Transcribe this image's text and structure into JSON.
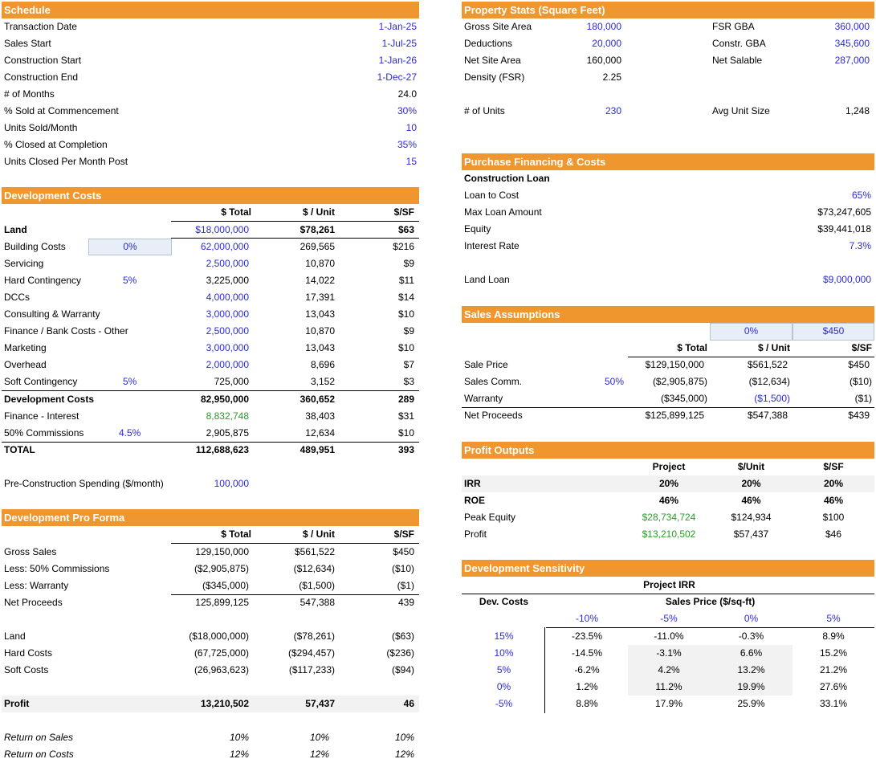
{
  "schedule": {
    "header": "Schedule",
    "rows": [
      {
        "label": "Transaction Date",
        "value": "1-Jan-25"
      },
      {
        "label": "Sales Start",
        "value": "1-Jul-25"
      },
      {
        "label": "Construction Start",
        "value": "1-Jan-26"
      },
      {
        "label": "Construction End",
        "value": "1-Dec-27"
      },
      {
        "label": "# of Months",
        "value": "24.0"
      },
      {
        "label": "% Sold at Commencement",
        "value": "30%"
      },
      {
        "label": "Units Sold/Month",
        "value": "10"
      },
      {
        "label": "% Closed at Completion",
        "value": "35%"
      },
      {
        "label": "Units Closed Per Month Post",
        "value": "15"
      }
    ]
  },
  "property": {
    "header": "Property Stats (Square Feet)",
    "left": [
      {
        "label": "Gross Site Area",
        "value": "180,000"
      },
      {
        "label": "Deductions",
        "value": "20,000"
      },
      {
        "label": "Net Site Area",
        "value": "160,000"
      },
      {
        "label": "Density (FSR)",
        "value": "2.25"
      }
    ],
    "right": [
      {
        "label": "FSR GBA",
        "value": "360,000"
      },
      {
        "label": "Constr. GBA",
        "value": "345,600"
      },
      {
        "label": "Net Salable",
        "value": "287,000"
      }
    ],
    "units_label": "# of Units",
    "units_value": "230",
    "avg_label": "Avg Unit Size",
    "avg_value": "1,248"
  },
  "devcosts": {
    "header": "Development Costs",
    "col_total": "$ Total",
    "col_unit": "$ / Unit",
    "col_sf": "$/SF",
    "rows": [
      {
        "label": "Land",
        "pct": "",
        "total": "$18,000,000",
        "unit": "$78,261",
        "sf": "$63"
      },
      {
        "label": "Building Costs",
        "pct": "0%",
        "total": "62,000,000",
        "unit": "269,565",
        "sf": "$216"
      },
      {
        "label": "Servicing",
        "pct": "",
        "total": "2,500,000",
        "unit": "10,870",
        "sf": "$9"
      },
      {
        "label": "Hard Contingency",
        "pct": "5%",
        "total": "3,225,000",
        "unit": "14,022",
        "sf": "$11"
      },
      {
        "label": "DCCs",
        "pct": "",
        "total": "4,000,000",
        "unit": "17,391",
        "sf": "$14"
      },
      {
        "label": "Consulting & Warranty",
        "pct": "",
        "total": "3,000,000",
        "unit": "13,043",
        "sf": "$10"
      },
      {
        "label": "Finance / Bank Costs - Other",
        "pct": "",
        "total": "2,500,000",
        "unit": "10,870",
        "sf": "$9"
      },
      {
        "label": "Marketing",
        "pct": "",
        "total": "3,000,000",
        "unit": "13,043",
        "sf": "$10"
      },
      {
        "label": "Overhead",
        "pct": "",
        "total": "2,000,000",
        "unit": "8,696",
        "sf": "$7"
      },
      {
        "label": "Soft Contingency",
        "pct": "5%",
        "total": "725,000",
        "unit": "3,152",
        "sf": "$3"
      },
      {
        "label": "Development Costs",
        "pct": "",
        "total": "82,950,000",
        "unit": "360,652",
        "sf": "289"
      },
      {
        "label": "Finance - Interest",
        "pct": "",
        "total": "8,832,748",
        "unit": "38,403",
        "sf": "$31"
      },
      {
        "label": "50% Commissions",
        "pct": "4.5%",
        "total": "2,905,875",
        "unit": "12,634",
        "sf": "$10"
      },
      {
        "label": "TOTAL",
        "pct": "",
        "total": "112,688,623",
        "unit": "489,951",
        "sf": "393"
      }
    ],
    "preconst_label": "Pre-Construction Spending ($/month)",
    "preconst_value": "100,000"
  },
  "proforma": {
    "header": "Development Pro Forma",
    "col_total": "$ Total",
    "col_unit": "$ / Unit",
    "col_sf": "$/SF",
    "rows": [
      {
        "label": "Gross Sales",
        "total": "129,150,000",
        "unit": "$561,522",
        "sf": "$450"
      },
      {
        "label": "Less: 50% Commissions",
        "total": "($2,905,875)",
        "unit": "($12,634)",
        "sf": "($10)"
      },
      {
        "label": "Less: Warranty",
        "total": "($345,000)",
        "unit": "($1,500)",
        "sf": "($1)"
      },
      {
        "label": "Net Proceeds",
        "total": "125,899,125",
        "unit": "547,388",
        "sf": "439"
      },
      {
        "label": "Land",
        "total": "($18,000,000)",
        "unit": "($78,261)",
        "sf": "($63)"
      },
      {
        "label": "Hard Costs",
        "total": "(67,725,000)",
        "unit": "($294,457)",
        "sf": "($236)"
      },
      {
        "label": "Soft Costs",
        "total": "(26,963,623)",
        "unit": "($117,233)",
        "sf": "($94)"
      },
      {
        "label": "Profit",
        "total": "13,210,502",
        "unit": "57,437",
        "sf": "46"
      },
      {
        "label": "Return on Sales",
        "total": "10%",
        "unit": "10%",
        "sf": "10%"
      },
      {
        "label": "Return on Costs",
        "total": "12%",
        "unit": "12%",
        "sf": "12%"
      }
    ]
  },
  "financing": {
    "header": "Purchase Financing & Costs",
    "sub": "Construction Loan",
    "rows": [
      {
        "label": "Loan to Cost",
        "value": "65%"
      },
      {
        "label": "Max Loan Amount",
        "value": "$73,247,605"
      },
      {
        "label": "Equity",
        "value": "$39,441,018"
      },
      {
        "label": "Interest Rate",
        "value": "7.3%"
      }
    ],
    "land_label": "Land Loan",
    "land_value": "$9,000,000"
  },
  "sales": {
    "header": "Sales Assumptions",
    "input1": "0%",
    "input2": "$450",
    "col_total": "$ Total",
    "col_unit": "$ / Unit",
    "col_sf": "$/SF",
    "rows": [
      {
        "label": "Sale Price",
        "pct": "",
        "total": "$129,150,000",
        "unit": "$561,522",
        "sf": "$450"
      },
      {
        "label": "Sales Comm.",
        "pct": "50%",
        "total": "($2,905,875)",
        "unit": "($12,634)",
        "sf": "($10)"
      },
      {
        "label": "Warranty",
        "pct": "",
        "total": "($345,000)",
        "unit": "($1,500)",
        "sf": "($1)"
      },
      {
        "label": "Net Proceeds",
        "pct": "",
        "total": "$125,899,125",
        "unit": "$547,388",
        "sf": "$439"
      }
    ]
  },
  "profit": {
    "header": "Profit Outputs",
    "col_project": "Project",
    "col_unit": "$/Unit",
    "col_sf": "$/SF",
    "rows": [
      {
        "label": "IRR",
        "project": "20%",
        "unit": "20%",
        "sf": "20%"
      },
      {
        "label": "ROE",
        "project": "46%",
        "unit": "46%",
        "sf": "46%"
      },
      {
        "label": "Peak Equity",
        "project": "$28,734,724",
        "unit": "$124,934",
        "sf": "$100"
      },
      {
        "label": "Profit",
        "project": "$13,210,502",
        "unit": "$57,437",
        "sf": "$46"
      }
    ]
  },
  "sensitivity": {
    "header": "Development Sensitivity",
    "title": "Project IRR",
    "row_axis": "Dev. Costs",
    "col_axis": "Sales Price ($/sq-ft)",
    "cols": [
      "-10%",
      "-5%",
      "0%",
      "5%"
    ],
    "rows": [
      {
        "label": "15%",
        "values": [
          "-23.5%",
          "-11.0%",
          "-0.3%",
          "8.9%"
        ]
      },
      {
        "label": "10%",
        "values": [
          "-14.5%",
          "-3.1%",
          "6.6%",
          "15.2%"
        ]
      },
      {
        "label": "5%",
        "values": [
          "-6.2%",
          "4.2%",
          "13.2%",
          "21.2%"
        ]
      },
      {
        "label": "0%",
        "values": [
          "1.2%",
          "11.2%",
          "19.9%",
          "27.6%"
        ]
      },
      {
        "label": "-5%",
        "values": [
          "8.8%",
          "17.9%",
          "25.9%",
          "33.1%"
        ]
      }
    ]
  },
  "colors": {
    "header_bg": "#f0962e",
    "input_blue": "#2b2bd9",
    "link_green": "#2a9a2a"
  }
}
